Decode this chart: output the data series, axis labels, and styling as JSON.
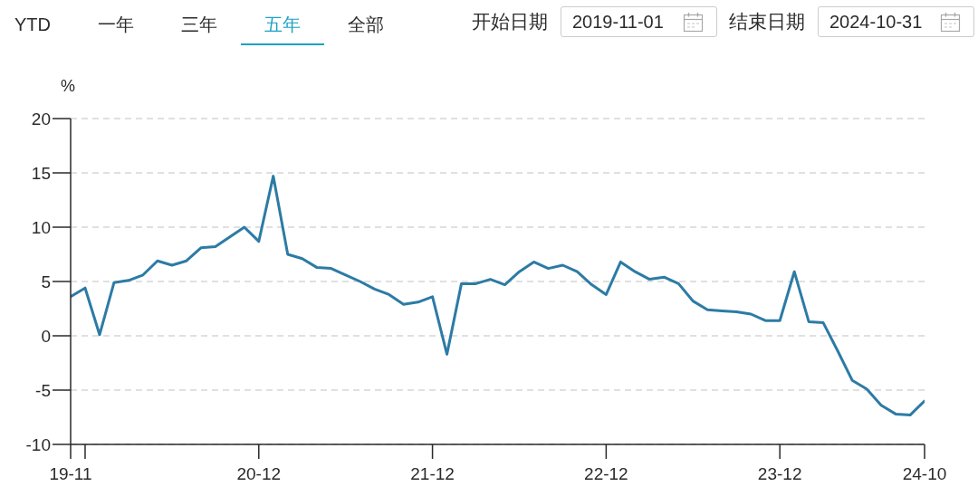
{
  "chart_data": {
    "type": "line",
    "ylabel": "%",
    "annotations": [
      "YTD",
      "一年",
      "三年",
      "五年",
      "全部",
      "开始日期",
      "2019-11-01",
      "结束日期",
      "2024-10-31"
    ],
    "x": [
      "2019-11",
      "2019-12",
      "2020-01",
      "2020-02",
      "2020-03",
      "2020-04",
      "2020-05",
      "2020-06",
      "2020-07",
      "2020-08",
      "2020-09",
      "2020-10",
      "2020-11",
      "2020-12",
      "2021-01",
      "2021-02",
      "2021-03",
      "2021-04",
      "2021-05",
      "2021-06",
      "2021-07",
      "2021-08",
      "2021-09",
      "2021-10",
      "2021-11",
      "2021-12",
      "2022-01",
      "2022-02",
      "2022-03",
      "2022-04",
      "2022-05",
      "2022-06",
      "2022-07",
      "2022-08",
      "2022-09",
      "2022-10",
      "2022-11",
      "2022-12",
      "2023-01",
      "2023-02",
      "2023-03",
      "2023-04",
      "2023-05",
      "2023-06",
      "2023-07",
      "2023-08",
      "2023-09",
      "2023-10",
      "2023-11",
      "2023-12",
      "2024-01",
      "2024-02",
      "2024-03",
      "2024-04",
      "2024-05",
      "2024-06",
      "2024-07",
      "2024-08",
      "2024-09",
      "2024-10"
    ],
    "values": [
      3.6,
      4.4,
      0.1,
      4.9,
      5.1,
      5.6,
      6.9,
      6.5,
      6.9,
      8.1,
      8.2,
      9.1,
      10.0,
      8.7,
      14.7,
      7.5,
      7.1,
      6.3,
      6.2,
      5.6,
      5.0,
      4.3,
      3.8,
      2.9,
      3.1,
      3.6,
      -1.7,
      4.8,
      4.8,
      5.2,
      4.7,
      5.9,
      6.8,
      6.2,
      6.5,
      5.9,
      4.7,
      3.8,
      6.8,
      5.9,
      5.2,
      5.4,
      4.8,
      3.2,
      2.4,
      2.3,
      2.2,
      2.0,
      1.4,
      1.4,
      5.9,
      1.3,
      1.2,
      -1.4,
      -4.1,
      -4.9,
      -6.4,
      -7.2,
      -7.3,
      -6.0
    ],
    "color": "#2c7ba5",
    "xlim": [
      "2019-11",
      "2024-10"
    ],
    "xticks": [
      {
        "value": "2019-11",
        "label": "19-11"
      },
      {
        "value": "2019-12",
        "label": null
      },
      {
        "value": "2020-12",
        "label": "20-12"
      },
      {
        "value": "2021-12",
        "label": "21-12"
      },
      {
        "value": "2022-12",
        "label": "22-12"
      },
      {
        "value": "2023-12",
        "label": "23-12"
      },
      {
        "value": "2024-10",
        "label": "24-10"
      }
    ],
    "ylim": [
      -10,
      20
    ],
    "yticks": [
      -10,
      -5,
      0,
      5,
      10,
      15,
      20
    ],
    "grid": "y"
  }
}
